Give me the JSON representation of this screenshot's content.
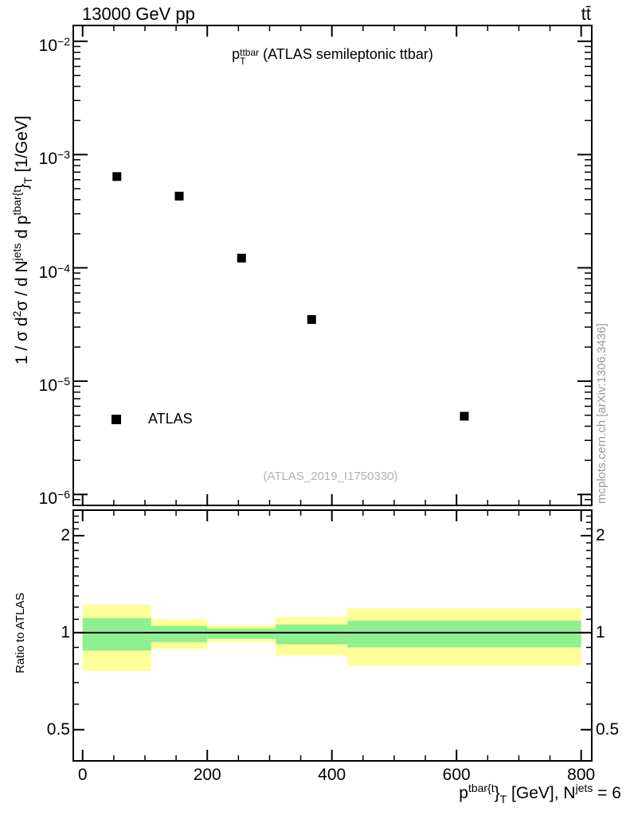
{
  "header": {
    "left": "13000 GeV pp",
    "right": "tt̄"
  },
  "labels": {
    "title": {
      "base": "p",
      "sup": "ttbar",
      "sub": "T",
      "rest": " (ATLAS semileptonic ttbar)"
    },
    "ylabel": {
      "p1": "1 / σ d",
      "sup1": "2",
      "p2": "σ / d N",
      "sup2": "jets",
      "p3": " d p",
      "sup3": "tbar{t",
      "p4": "}",
      "sub4": "T",
      "p5": " [1/GeV]"
    },
    "xlabel": {
      "p1": "p",
      "sup1": "tbar{t",
      "p2": "}",
      "sub2": "T",
      "p3": " [GeV], N",
      "sup3": "jets",
      "p4": " = 6"
    }
  },
  "legend": {
    "label": "ATLAS"
  },
  "watermark": "(ATLAS_2019_I1750330)",
  "side_note": "mcplots.cern.ch [arXiv:1306.3436]",
  "chart_data": {
    "type": "scatter",
    "title": "p_T^{ttbar} (ATLAS semileptonic ttbar)",
    "xlabel": "p_T^{tbar{t}} [GeV], N^{jets} = 6",
    "ylabel": "1 / sigma d^2sigma / d N^{jets} d p_T^{tbar{t}} [1/GeV]",
    "x_range": [
      -15,
      817
    ],
    "x_major_ticks": [
      0,
      200,
      400,
      600,
      800
    ],
    "x_tick_labels": [
      "0",
      "200",
      "400",
      "600",
      "800"
    ],
    "x_minor_step": 50,
    "y_scale": "log",
    "y_range": [
      8e-07,
      0.0138
    ],
    "y_decades": [
      -2,
      -3,
      -4,
      -5,
      -6
    ],
    "y_tick_labels": [
      {
        "base": "10",
        "exp": "−2"
      },
      {
        "base": "10",
        "exp": "−3"
      },
      {
        "base": "10",
        "exp": "−4"
      },
      {
        "base": "10",
        "exp": "−5"
      },
      {
        "base": "10",
        "exp": "−6"
      }
    ],
    "grid": false,
    "legend_position": "inside-left-bottom",
    "series": [
      {
        "name": "ATLAS",
        "marker": "filled-square",
        "color": "#000000",
        "x": [
          55,
          155,
          255,
          367.5,
          612.5
        ],
        "y": [
          0.00064,
          0.00043,
          0.000122,
          3.5e-05,
          4.9e-06
        ]
      }
    ],
    "ratio_panel": {
      "ylabel": "Ratio to ATLAS",
      "y_scale": "log",
      "y_range": [
        0.4,
        2.4
      ],
      "y_tick_values": [
        2,
        1,
        0.5
      ],
      "y_tick_labels": [
        "2",
        "1",
        "0.5"
      ],
      "reference_line": 1,
      "bin_edges": [
        0,
        110,
        200,
        310,
        425,
        800
      ],
      "bands": [
        {
          "x0": 0,
          "x1": 110,
          "outer": [
            0.76,
            1.22
          ],
          "inner": [
            0.88,
            1.11
          ]
        },
        {
          "x0": 110,
          "x1": 200,
          "outer": [
            0.89,
            1.1
          ],
          "inner": [
            0.935,
            1.05
          ]
        },
        {
          "x0": 200,
          "x1": 310,
          "outer": [
            0.935,
            1.055
          ],
          "inner": [
            0.957,
            1.03
          ]
        },
        {
          "x0": 310,
          "x1": 425,
          "outer": [
            0.85,
            1.12
          ],
          "inner": [
            0.92,
            1.06
          ]
        },
        {
          "x0": 425,
          "x1": 800,
          "outer": [
            0.79,
            1.19
          ],
          "inner": [
            0.9,
            1.09
          ]
        }
      ],
      "band_colors": {
        "outer": "#ffff99",
        "inner": "#8ef08e"
      }
    }
  }
}
